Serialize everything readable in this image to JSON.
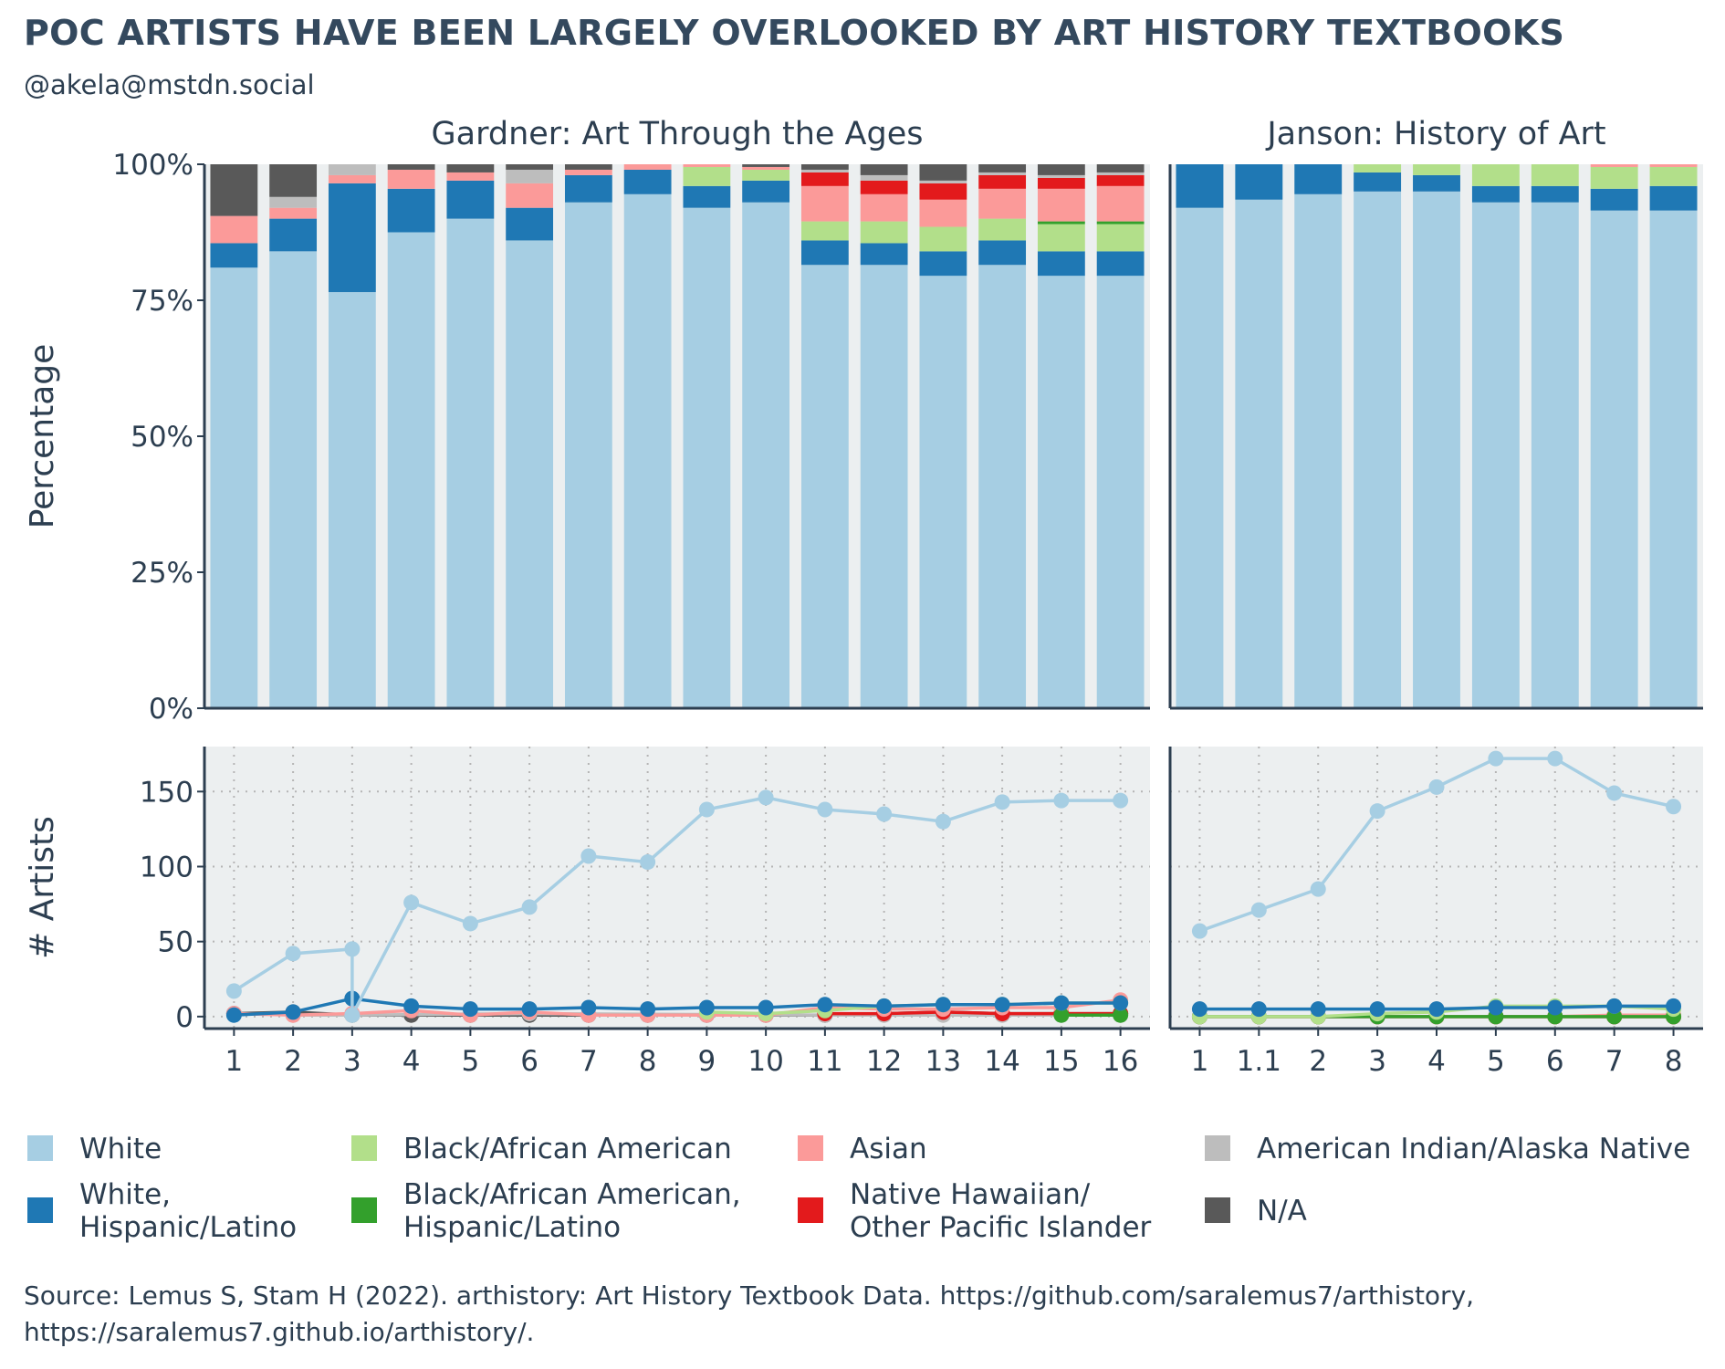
{
  "title": "POC ARTISTS HAVE BEEN LARGELY OVERLOOKED BY ART HISTORY TEXTBOOKS",
  "subtitle": "@akela@mstdn.social",
  "caption_lines": [
    "Source: Lemus S, Stam H (2022). arthistory: Art History Textbook Data. https://github.com/saralemus7/arthistory,",
    "https://saralemus7.github.io/arthistory/."
  ],
  "colors": {
    "White": "#a6cee3",
    "White, Hispanic/Latino": "#1f78b4",
    "Black/African American": "#b2df8a",
    "Black/African American, Hispanic/Latino": "#33a02c",
    "Asian": "#fb9a99",
    "Native Hawaiian/Other Pacific Islander": "#e31a1c",
    "American Indian/Alaska Native": "#bdbdbd",
    "N/A": "#595959"
  },
  "legend": [
    {
      "key": "White",
      "lines": [
        "White"
      ]
    },
    {
      "key": "White, Hispanic/Latino",
      "lines": [
        "White,",
        "Hispanic/Latino"
      ]
    },
    {
      "key": "Black/African American",
      "lines": [
        "Black/African American"
      ]
    },
    {
      "key": "Black/African American, Hispanic/Latino",
      "lines": [
        "Black/African American,",
        "Hispanic/Latino"
      ]
    },
    {
      "key": "Asian",
      "lines": [
        "Asian"
      ]
    },
    {
      "key": "Native Hawaiian/Other Pacific Islander",
      "lines": [
        "Native Hawaiian/",
        "Other Pacific Islander"
      ]
    },
    {
      "key": "American Indian/Alaska Native",
      "lines": [
        "American Indian/Alaska Native"
      ]
    },
    {
      "key": "N/A",
      "lines": [
        "N/A"
      ]
    }
  ],
  "chart_data": [
    {
      "type": "bar",
      "stacked": true,
      "facet": "Gardner: Art Through the Ages",
      "ylabel": "Percentage",
      "yticks": [
        "0%",
        "25%",
        "50%",
        "75%",
        "100%"
      ],
      "ylim": [
        0,
        100
      ],
      "categories": [
        "1",
        "2",
        "3",
        "4",
        "5",
        "6",
        "7",
        "8",
        "9",
        "10",
        "11",
        "12",
        "13",
        "14",
        "15",
        "16"
      ],
      "series": [
        {
          "name": "White",
          "values": [
            81,
            84,
            76.5,
            87.5,
            90,
            86,
            93,
            94.5,
            92,
            93,
            81.5,
            81.5,
            79.5,
            81.5,
            79.5,
            79.5
          ]
        },
        {
          "name": "White, Hispanic/Latino",
          "values": [
            4.5,
            6,
            20,
            8,
            7,
            6,
            5,
            4.5,
            4,
            4,
            4.5,
            4,
            4.5,
            4.5,
            4.5,
            4.5
          ]
        },
        {
          "name": "Black/African American",
          "values": [
            0,
            0,
            0,
            0,
            0,
            0,
            0,
            0,
            3.5,
            2,
            3.5,
            4,
            4.5,
            4,
            5,
            5
          ]
        },
        {
          "name": "Black/African American, Hispanic/Latino",
          "values": [
            0,
            0,
            0,
            0,
            0,
            0,
            0,
            0,
            0,
            0,
            0,
            0,
            0,
            0,
            0.5,
            0.5
          ]
        },
        {
          "name": "Asian",
          "values": [
            5,
            2,
            1.5,
            3.5,
            1.5,
            4.5,
            1,
            1,
            0.5,
            0.5,
            6.5,
            5,
            5,
            5.5,
            6,
            6.5
          ]
        },
        {
          "name": "Native Hawaiian/Other Pacific Islander",
          "values": [
            0,
            0,
            0,
            0,
            0,
            0,
            0,
            0,
            0,
            0,
            2.5,
            2.5,
            3,
            2.5,
            2,
            2
          ]
        },
        {
          "name": "American Indian/Alaska Native",
          "values": [
            0,
            2,
            2,
            0,
            0,
            2.5,
            0,
            0,
            0,
            0,
            0.5,
            1,
            0.5,
            0.5,
            0.5,
            0.5
          ]
        },
        {
          "name": "N/A",
          "values": [
            9.5,
            6,
            0,
            1,
            1.5,
            1,
            1,
            0,
            0,
            0.5,
            1,
            2,
            3,
            1.5,
            2,
            1.5
          ]
        }
      ]
    },
    {
      "type": "bar",
      "stacked": true,
      "facet": "Janson: History of Art",
      "ylim": [
        0,
        100
      ],
      "categories": [
        "1",
        "1.1",
        "2",
        "3",
        "4",
        "5",
        "6",
        "7",
        "8"
      ],
      "series": [
        {
          "name": "White",
          "values": [
            92,
            93.5,
            94.5,
            95,
            95,
            93,
            93,
            91.5,
            91.5
          ]
        },
        {
          "name": "White, Hispanic/Latino",
          "values": [
            8,
            6.5,
            5.5,
            3.5,
            3,
            3,
            3,
            4,
            4.5
          ]
        },
        {
          "name": "Black/African American",
          "values": [
            0,
            0,
            0,
            1.5,
            2,
            4,
            4,
            4,
            3.5
          ]
        },
        {
          "name": "Black/African American, Hispanic/Latino",
          "values": [
            0,
            0,
            0,
            0,
            0,
            0,
            0,
            0,
            0
          ]
        },
        {
          "name": "Asian",
          "values": [
            0,
            0,
            0,
            0,
            0,
            0,
            0,
            0.5,
            0.5
          ]
        },
        {
          "name": "Native Hawaiian/Other Pacific Islander",
          "values": [
            0,
            0,
            0,
            0,
            0,
            0,
            0,
            0,
            0
          ]
        },
        {
          "name": "American Indian/Alaska Native",
          "values": [
            0,
            0,
            0,
            0,
            0,
            0,
            0,
            0,
            0
          ]
        },
        {
          "name": "N/A",
          "values": [
            0,
            0,
            0,
            0,
            0,
            0,
            0,
            0,
            0
          ]
        }
      ]
    },
    {
      "type": "line",
      "facet": "Gardner: Art Through the Ages",
      "ylabel": "# Artists",
      "yticks": [
        0,
        50,
        100,
        150
      ],
      "ylim": [
        -8,
        180
      ],
      "categories": [
        "1",
        "2",
        "3",
        "4",
        "5",
        "6",
        "7",
        "8",
        "9",
        "10",
        "11",
        "12",
        "13",
        "14",
        "15",
        "16"
      ],
      "x_positions": [
        1,
        2,
        3,
        3,
        4,
        5,
        6,
        7,
        8,
        9,
        10,
        11,
        12,
        13,
        14,
        15,
        16
      ],
      "series": [
        {
          "name": "White",
          "x": [
            1,
            2,
            3,
            3,
            4,
            5,
            6,
            7,
            8,
            9,
            10,
            11,
            12,
            13,
            14,
            15,
            16
          ],
          "values": [
            17,
            42,
            45,
            1,
            76,
            62,
            73,
            107,
            103,
            138,
            146,
            138,
            135,
            130,
            143,
            144,
            144
          ]
        },
        {
          "name": "White, Hispanic/Latino",
          "x": [
            1,
            2,
            3,
            3,
            4,
            5,
            6,
            7,
            8,
            9,
            10,
            11,
            12,
            13,
            14,
            15,
            16
          ],
          "values": [
            1,
            3,
            12,
            12,
            7,
            5,
            5,
            6,
            5,
            6,
            6,
            8,
            7,
            8,
            8,
            9,
            9
          ]
        },
        {
          "name": "Black/African American",
          "x": [
            9,
            10,
            11,
            12,
            13,
            14,
            15,
            16
          ],
          "values": [
            3,
            2,
            4,
            7,
            8,
            8,
            9,
            9
          ]
        },
        {
          "name": "Black/African American, Hispanic/Latino",
          "x": [
            15,
            16
          ],
          "values": [
            1,
            1
          ]
        },
        {
          "name": "Asian",
          "x": [
            1,
            2,
            3,
            4,
            5,
            6,
            7,
            8,
            9,
            10,
            11,
            12,
            13,
            14,
            15,
            16
          ],
          "values": [
            2,
            1,
            2,
            4,
            1,
            3,
            1,
            1,
            1,
            1,
            6,
            5,
            5,
            6,
            6,
            11
          ]
        },
        {
          "name": "Native Hawaiian/Other Pacific Islander",
          "x": [
            11,
            12,
            13,
            14,
            15,
            16
          ],
          "values": [
            2,
            2,
            3,
            2,
            2,
            2
          ]
        },
        {
          "name": "American Indian/Alaska Native",
          "x": [
            2,
            3,
            6,
            11,
            12,
            13,
            14,
            15,
            16
          ],
          "values": [
            1,
            1,
            2,
            1,
            1,
            1,
            1,
            1,
            1
          ]
        },
        {
          "name": "N/A",
          "x": [
            1,
            2,
            3,
            4,
            5,
            6,
            7,
            8,
            9,
            10,
            11,
            12,
            13,
            14,
            15,
            16
          ],
          "values": [
            2,
            3,
            1,
            1,
            1,
            1,
            1,
            1,
            1,
            1,
            1,
            2,
            3,
            2,
            2,
            2
          ]
        }
      ]
    },
    {
      "type": "line",
      "facet": "Janson: History of Art",
      "ylim": [
        -8,
        180
      ],
      "categories": [
        "1",
        "1.1",
        "2",
        "3",
        "4",
        "5",
        "6",
        "7",
        "8"
      ],
      "series": [
        {
          "name": "White",
          "values": [
            57,
            71,
            85,
            137,
            153,
            172,
            172,
            149,
            140
          ]
        },
        {
          "name": "White, Hispanic/Latino",
          "values": [
            5,
            5,
            5,
            5,
            5,
            6,
            6,
            7,
            7
          ]
        },
        {
          "name": "Black/African American",
          "values": [
            0,
            0,
            0,
            2,
            3,
            7,
            7,
            7,
            5
          ]
        },
        {
          "name": "Black/African American, Hispanic/Latino",
          "values": [
            0,
            0,
            0,
            0,
            0,
            0,
            0,
            0,
            0
          ]
        },
        {
          "name": "Asian",
          "values": [
            0,
            0,
            0,
            0,
            0,
            0,
            0,
            1,
            1
          ]
        },
        {
          "name": "Native Hawaiian/Other Pacific Islander",
          "values": [
            0,
            0,
            0,
            0,
            0,
            0,
            0,
            0,
            0
          ]
        },
        {
          "name": "American Indian/Alaska Native",
          "values": [
            0,
            0,
            0,
            0,
            0,
            0,
            0,
            0,
            0
          ]
        },
        {
          "name": "N/A",
          "values": [
            0,
            0,
            0,
            0,
            0,
            0,
            0,
            0,
            0
          ]
        }
      ]
    }
  ]
}
